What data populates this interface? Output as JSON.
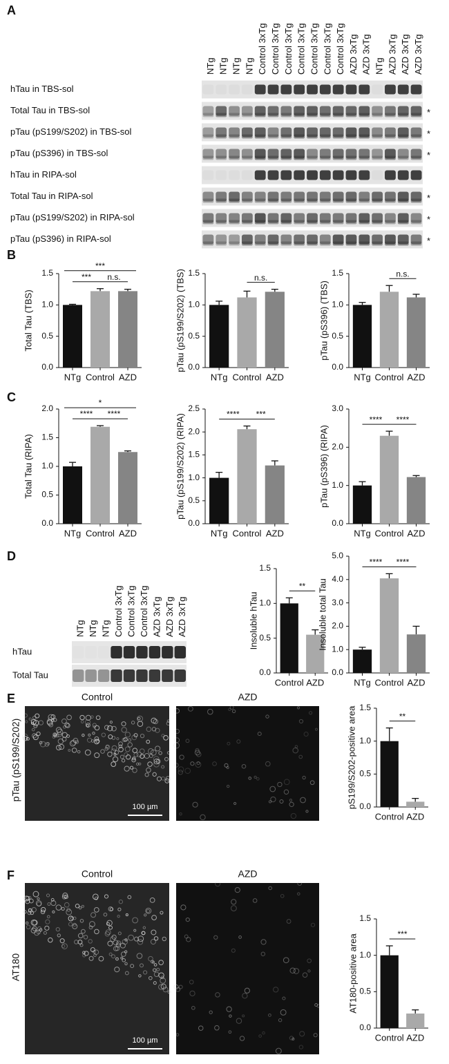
{
  "panels": {
    "a": "A",
    "b": "B",
    "c": "C",
    "d": "D",
    "e": "E",
    "f": "F"
  },
  "blot_a": {
    "lanes": [
      "NTg",
      "NTg",
      "NTg",
      "NTg",
      "Control 3xTg",
      "Control 3xTg",
      "Control 3xTg",
      "Control 3xTg",
      "Control 3xTg",
      "Control 3xTg",
      "Control 3xTg",
      "AZD 3xTg",
      "AZD 3xTg",
      "NTg",
      "AZD 3xTg",
      "AZD 3xTg",
      "AZD 3xTg"
    ],
    "rows": [
      {
        "label": "hTau in TBS-sol"
      },
      {
        "label": "Total Tau in TBS-sol",
        "note": "*"
      },
      {
        "label": "pTau (pS199/S202) in TBS-sol",
        "note": "*"
      },
      {
        "label": "pTau (pS396) in TBS-sol",
        "note": "*"
      },
      {
        "label": "hTau in RIPA-sol"
      },
      {
        "label": "Total Tau in RIPA-sol",
        "note": "*"
      },
      {
        "label": "pTau (pS199/S202) in RIPA-sol",
        "note": "*"
      },
      {
        "label": "pTau (pS396) in RIPA-sol",
        "note": "*"
      }
    ]
  },
  "blot_d": {
    "lanes": [
      "NTg",
      "NTg",
      "NTg",
      "Control 3xTg",
      "Control 3xTg",
      "Control 3xTg",
      "AZD 3xTg",
      "AZD 3xTg",
      "AZD 3xTg"
    ],
    "rows": [
      "hTau",
      "Total Tau"
    ]
  },
  "image_e": {
    "columns": [
      "Control",
      "AZD"
    ],
    "stain": "pTau (pS199/S202)",
    "scale_bar": "100 µm"
  },
  "image_f": {
    "columns": [
      "Control",
      "AZD"
    ],
    "stain": "AT180",
    "scale_bar": "100 µm"
  },
  "chart_data": [
    {
      "type": "bar",
      "y_label": "Total Tau (TBS)",
      "categories": [
        "NTg",
        "Control",
        "AZD"
      ],
      "values": [
        1.0,
        1.22,
        1.22
      ],
      "errors": [
        0.01,
        0.04,
        0.03
      ],
      "colors": [
        "#111111",
        "#a9a9a9",
        "#858585"
      ],
      "ylim": [
        0,
        1.5
      ],
      "yticks": [
        {
          "value": 0,
          "label": "0.0"
        },
        0.5,
        {
          "value": 1,
          "label": "1.0"
        },
        1.5
      ],
      "annotations": [
        {
          "text": "***",
          "between": [
            "NTg",
            "Control"
          ]
        },
        {
          "text": "n.s.",
          "between": [
            "Control",
            "AZD"
          ]
        },
        {
          "text": "***",
          "between": [
            "NTg",
            "AZD"
          ]
        }
      ]
    },
    {
      "type": "bar",
      "y_label": "pTau (pS199/S202) (TBS)",
      "categories": [
        "NTg",
        "Control",
        "AZD"
      ],
      "values": [
        1.0,
        1.12,
        1.21
      ],
      "errors": [
        0.06,
        0.1,
        0.04
      ],
      "colors": [
        "#111111",
        "#a9a9a9",
        "#858585"
      ],
      "ylim": [
        0,
        1.5
      ],
      "yticks": [
        {
          "value": 0,
          "label": "0.0"
        },
        0.5,
        {
          "value": 1,
          "label": "1.0"
        },
        1.5
      ],
      "annotations": [
        {
          "text": "n.s.",
          "between": [
            "Control",
            "AZD"
          ]
        }
      ]
    },
    {
      "type": "bar",
      "y_label": "pTau (pS396) (TBS)",
      "categories": [
        "NTg",
        "Control",
        "AZD"
      ],
      "values": [
        1.0,
        1.21,
        1.12
      ],
      "errors": [
        0.04,
        0.1,
        0.05
      ],
      "colors": [
        "#111111",
        "#a9a9a9",
        "#858585"
      ],
      "ylim": [
        0,
        1.5
      ],
      "yticks": [
        {
          "value": 0,
          "label": "0.0"
        },
        0.5,
        {
          "value": 1,
          "label": "1.0"
        },
        1.5
      ],
      "annotations": [
        {
          "text": "n.s.",
          "between": [
            "Control",
            "AZD"
          ]
        }
      ]
    },
    {
      "type": "bar",
      "y_label": "Total Tau (RIPA)",
      "categories": [
        "NTg",
        "Control",
        "AZD"
      ],
      "values": [
        1.0,
        1.69,
        1.25
      ],
      "errors": [
        0.07,
        0.02,
        0.02
      ],
      "colors": [
        "#111111",
        "#a9a9a9",
        "#858585"
      ],
      "ylim": [
        0,
        2
      ],
      "yticks": [
        {
          "value": 0,
          "label": "0.0"
        },
        0.5,
        {
          "value": 1,
          "label": "1.0"
        },
        1.5,
        {
          "value": 2,
          "label": "2.0"
        }
      ],
      "annotations": [
        {
          "text": "****",
          "between": [
            "NTg",
            "Control"
          ]
        },
        {
          "text": "****",
          "between": [
            "Control",
            "AZD"
          ]
        },
        {
          "text": "*",
          "between": [
            "NTg",
            "AZD"
          ]
        }
      ]
    },
    {
      "type": "bar",
      "y_label": "pTau (pS199/S202) (RIPA)",
      "categories": [
        "NTg",
        "Control",
        "AZD"
      ],
      "values": [
        1.0,
        2.06,
        1.27
      ],
      "errors": [
        0.12,
        0.07,
        0.1
      ],
      "colors": [
        "#111111",
        "#a9a9a9",
        "#858585"
      ],
      "ylim": [
        0,
        2.5
      ],
      "yticks": [
        {
          "value": 0,
          "label": "0.0"
        },
        0.5,
        {
          "value": 1,
          "label": "1.0"
        },
        1.5,
        {
          "value": 2,
          "label": "2.0"
        },
        2.5
      ],
      "annotations": [
        {
          "text": "****",
          "between": [
            "NTg",
            "Control"
          ]
        },
        {
          "text": "***",
          "between": [
            "Control",
            "AZD"
          ]
        }
      ]
    },
    {
      "type": "bar",
      "y_label": "pTau (pS396) (RIPA)",
      "categories": [
        "NTg",
        "Control",
        "AZD"
      ],
      "values": [
        1.0,
        2.3,
        1.22
      ],
      "errors": [
        0.1,
        0.12,
        0.04
      ],
      "colors": [
        "#111111",
        "#a9a9a9",
        "#858585"
      ],
      "ylim": [
        0,
        3
      ],
      "yticks": [
        {
          "value": 0,
          "label": "0.0"
        },
        {
          "value": 1,
          "label": "1.0"
        },
        {
          "value": 2,
          "label": "2.0"
        },
        {
          "value": 3,
          "label": "3.0"
        }
      ],
      "annotations": [
        {
          "text": "****",
          "between": [
            "NTg",
            "Control"
          ]
        },
        {
          "text": "****",
          "between": [
            "Control",
            "AZD"
          ]
        }
      ]
    },
    {
      "type": "bar",
      "y_label": "Insoluble hTau",
      "categories": [
        "Control",
        "AZD"
      ],
      "values": [
        1.0,
        0.55
      ],
      "errors": [
        0.08,
        0.07
      ],
      "colors": [
        "#111111",
        "#a9a9a9"
      ],
      "ylim": [
        0,
        1.5
      ],
      "yticks": [
        {
          "value": 0,
          "label": "0.0"
        },
        0.5,
        {
          "value": 1,
          "label": "1.0"
        },
        1.5
      ],
      "annotations": [
        {
          "text": "**",
          "between": [
            "Control",
            "AZD"
          ]
        }
      ]
    },
    {
      "type": "bar",
      "y_label": "Insoluble total Tau",
      "categories": [
        "NTg",
        "Control",
        "AZD"
      ],
      "values": [
        1.0,
        4.05,
        1.65
      ],
      "errors": [
        0.1,
        0.2,
        0.35
      ],
      "colors": [
        "#111111",
        "#a9a9a9",
        "#858585"
      ],
      "ylim": [
        0,
        5
      ],
      "yticks": [
        {
          "value": 0,
          "label": "0.0"
        },
        {
          "value": 1,
          "label": "1.0"
        },
        {
          "value": 2,
          "label": "2.0"
        },
        {
          "value": 3,
          "label": "3.0"
        },
        {
          "value": 4,
          "label": "4.0"
        },
        {
          "value": 5,
          "label": "5.0"
        }
      ],
      "annotations": [
        {
          "text": "****",
          "between": [
            "NTg",
            "Control"
          ]
        },
        {
          "text": "****",
          "between": [
            "Control",
            "AZD"
          ]
        }
      ]
    },
    {
      "type": "bar",
      "y_label": "pS199/S202-positive area",
      "categories": [
        "Control",
        "AZD"
      ],
      "values": [
        1.0,
        0.08
      ],
      "errors": [
        0.2,
        0.05
      ],
      "colors": [
        "#111111",
        "#a9a9a9"
      ],
      "ylim": [
        0,
        1.5
      ],
      "yticks": [
        {
          "value": 0,
          "label": "0.0"
        },
        0.5,
        {
          "value": 1,
          "label": "1.0"
        },
        1.5
      ],
      "annotations": [
        {
          "text": "**",
          "between": [
            "Control",
            "AZD"
          ]
        }
      ]
    },
    {
      "type": "bar",
      "y_label": "AT180-positive area",
      "categories": [
        "Control",
        "AZD"
      ],
      "values": [
        1.0,
        0.2
      ],
      "errors": [
        0.13,
        0.05
      ],
      "colors": [
        "#111111",
        "#a9a9a9"
      ],
      "ylim": [
        0,
        1.5
      ],
      "yticks": [
        {
          "value": 0,
          "label": "0.0"
        },
        0.5,
        {
          "value": 1,
          "label": "1.0"
        },
        1.5
      ],
      "annotations": [
        {
          "text": "***",
          "between": [
            "Control",
            "AZD"
          ]
        }
      ]
    }
  ]
}
